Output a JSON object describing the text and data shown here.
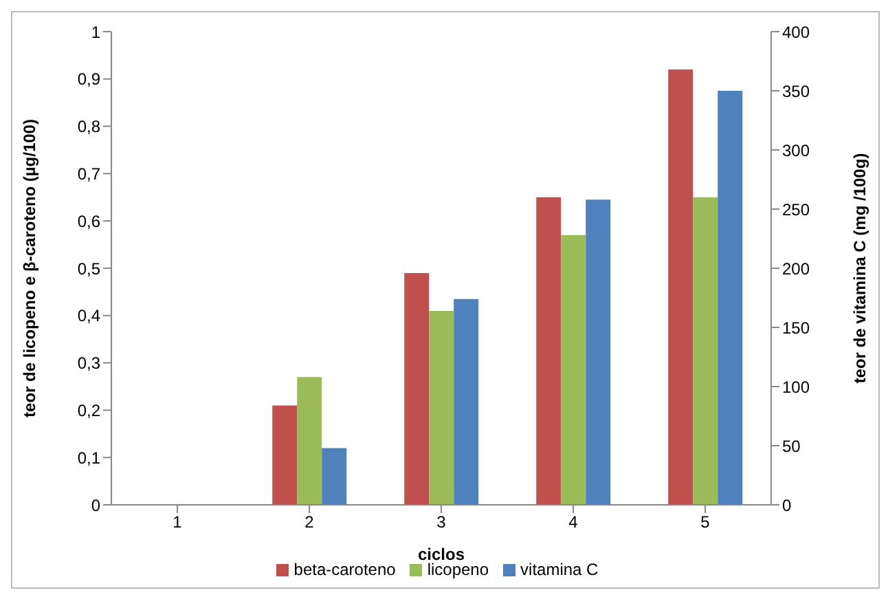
{
  "chart_data": {
    "type": "bar",
    "xlabel": "ciclos",
    "ylabel": "teor de licopeno e β-caroteno (µg/100)",
    "y2label": "teor de vitamina C (mg /100g)",
    "categories": [
      "1",
      "2",
      "3",
      "4",
      "5"
    ],
    "series": [
      {
        "name": "beta-caroteno",
        "color": "#c0504d",
        "values": [
          0,
          0.21,
          0.49,
          0.65,
          0.92
        ]
      },
      {
        "name": "licopeno",
        "color": "#9bbb59",
        "values": [
          0,
          0.27,
          0.41,
          0.57,
          0.65
        ]
      },
      {
        "name": "vitamina C",
        "color": "#4f81bd",
        "axis": "y2",
        "values": [
          0,
          48,
          174,
          258,
          350
        ]
      }
    ],
    "ylim": [
      0,
      1
    ],
    "yticks": [
      0,
      {
        "value": 0.1,
        "label": "0,1"
      },
      {
        "value": 0.2,
        "label": "0,2"
      },
      {
        "value": 0.3,
        "label": "0,3"
      },
      {
        "value": 0.4,
        "label": "0,4"
      },
      {
        "value": 0.5,
        "label": "0,5"
      },
      {
        "value": 0.6,
        "label": "0,6"
      },
      {
        "value": 0.7,
        "label": "0,7"
      },
      {
        "value": 0.8,
        "label": "0,8"
      },
      {
        "value": 0.9,
        "label": "0,9"
      },
      1
    ],
    "y2lim": [
      0,
      400
    ],
    "y2ticks": [
      0,
      50,
      100,
      150,
      200,
      250,
      300,
      350,
      400
    ],
    "grid": false,
    "legend": "bottom"
  }
}
